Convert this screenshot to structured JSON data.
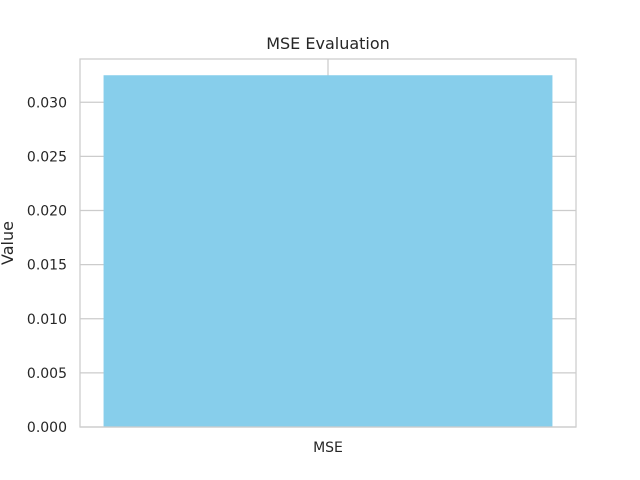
{
  "chart_data": {
    "type": "bar",
    "title": "MSE Evaluation",
    "xlabel": "",
    "ylabel": "Value",
    "categories": [
      "MSE"
    ],
    "values": [
      0.0325
    ],
    "ylim": [
      0,
      0.034
    ],
    "yticks": [
      0.0,
      0.005,
      0.01,
      0.015,
      0.02,
      0.025,
      0.03
    ],
    "ytick_labels": [
      "0.000",
      "0.005",
      "0.010",
      "0.015",
      "0.020",
      "0.025",
      "0.030"
    ],
    "bar_color": "#87ceeb",
    "grid": true,
    "grid_color": "#cccccc",
    "spine_color": "#cccccc",
    "legend": "none"
  }
}
